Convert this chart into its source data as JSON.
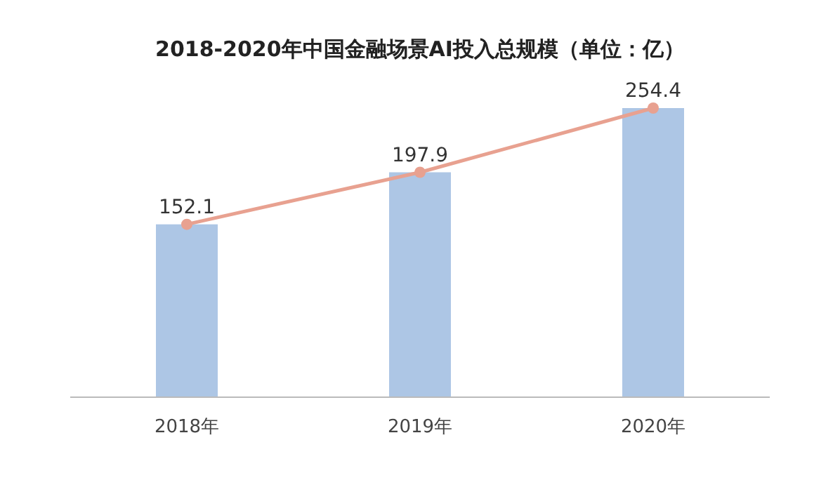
{
  "chart_data": {
    "type": "bar",
    "title": "2018-2020年中国金融场景AI投入总规模（单位：亿）",
    "categories": [
      "2018年",
      "2019年",
      "2020年"
    ],
    "series": [
      {
        "color": "#adc6e5",
        "values": [
          152.1,
          197.9,
          254.4
        ]
      },
      {
        "type": "line",
        "color": "#e8a190",
        "values": [
          152.1,
          197.9,
          254.4
        ],
        "marker": "circle",
        "value_labels": [
          "152.1",
          "197.9",
          "254.4"
        ]
      }
    ]
  }
}
